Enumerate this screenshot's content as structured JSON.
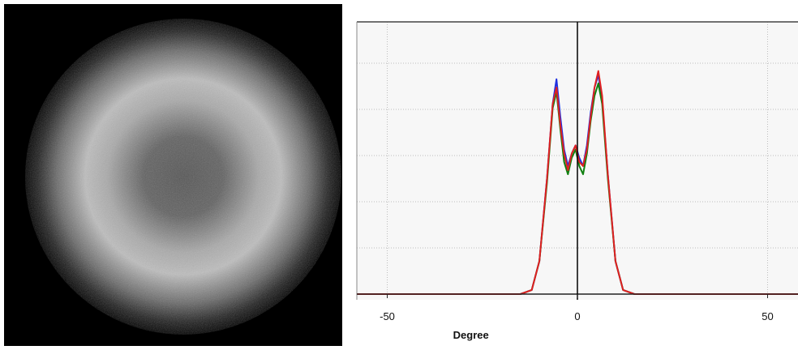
{
  "beam_image": {
    "ring_color": "#c8c8c8",
    "background_color": "#000000"
  },
  "chart_data": {
    "type": "line",
    "xlabel": "Degree",
    "ylabel": "",
    "title": "",
    "xlim": [
      -58,
      58
    ],
    "ylim": [
      0,
      6
    ],
    "x_ticks": [
      {
        "value": -50,
        "label": "-50"
      },
      {
        "value": 0,
        "label": "0"
      },
      {
        "value": 50,
        "label": "50"
      }
    ],
    "grid": true,
    "series": [
      {
        "color": "#2030e0",
        "x": [
          -58,
          -15,
          -12,
          -10,
          -8,
          -6.5,
          -5.5,
          -4.5,
          -3.5,
          -2.5,
          -1.5,
          -0.5,
          0.5,
          1.5,
          2.5,
          3.5,
          4.5,
          5.5,
          6.5,
          8,
          10,
          12,
          15,
          58
        ],
        "y": [
          0,
          0,
          0.1,
          0.8,
          2.8,
          4.6,
          5.2,
          4.3,
          3.5,
          3.1,
          3.4,
          3.6,
          3.3,
          3.1,
          3.6,
          4.4,
          5.0,
          5.3,
          4.7,
          2.9,
          0.8,
          0.1,
          0,
          0
        ]
      },
      {
        "color": "#108010",
        "x": [
          -58,
          -15,
          -12,
          -10,
          -8,
          -6.5,
          -5.5,
          -4.5,
          -3.5,
          -2.5,
          -1.5,
          -0.5,
          0.5,
          1.5,
          2.5,
          3.5,
          4.5,
          5.5,
          6.5,
          8,
          10,
          12,
          15,
          58
        ],
        "y": [
          0,
          0,
          0.1,
          0.8,
          2.7,
          4.5,
          4.9,
          4.0,
          3.2,
          2.9,
          3.3,
          3.5,
          3.1,
          2.9,
          3.4,
          4.2,
          4.8,
          5.1,
          4.6,
          2.8,
          0.8,
          0.1,
          0,
          0
        ]
      },
      {
        "color": "#e02020",
        "x": [
          -58,
          -15,
          -12,
          -10,
          -8,
          -6.5,
          -5.5,
          -4.5,
          -3.5,
          -2.5,
          -1.5,
          -0.5,
          0.5,
          1.5,
          2.5,
          3.5,
          4.5,
          5.5,
          6.5,
          8,
          10,
          12,
          15,
          58
        ],
        "y": [
          0,
          0,
          0.1,
          0.8,
          2.8,
          4.6,
          5.0,
          4.1,
          3.4,
          3.0,
          3.4,
          3.6,
          3.2,
          3.1,
          3.5,
          4.3,
          5.0,
          5.4,
          4.8,
          2.9,
          0.8,
          0.1,
          0,
          0
        ]
      }
    ]
  }
}
